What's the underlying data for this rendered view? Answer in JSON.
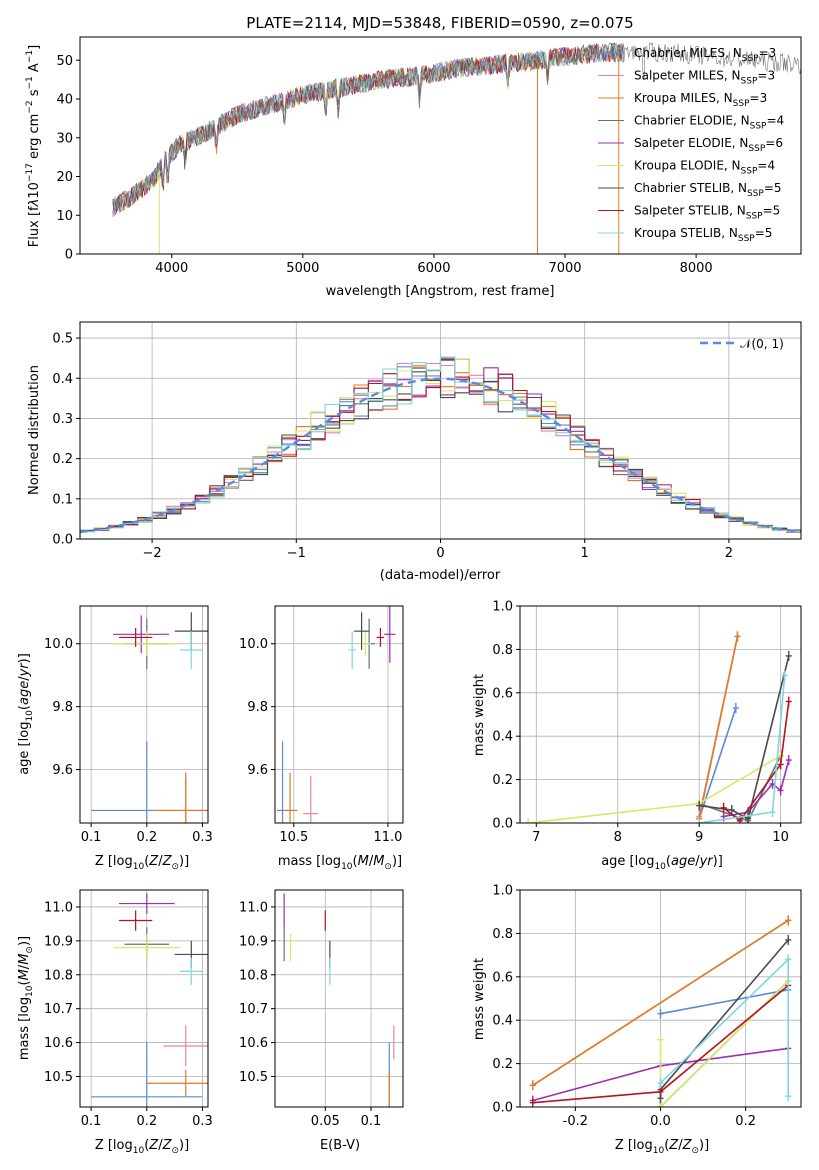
{
  "colors": {
    "Chabrier MILES": "#5b8ad9",
    "Salpeter MILES": "#ee82a8",
    "Kroupa MILES": "#e07a24",
    "Chabrier ELODIE": "#5d7a6a",
    "Salpeter ELODIE": "#9a2fb0",
    "Kroupa ELODIE": "#d7e86a",
    "Chabrier STELIB": "#4a4a4a",
    "Salpeter STELIB": "#b3141e",
    "Kroupa STELIB": "#7fd6e0"
  },
  "chart_data": [
    {
      "type": "line",
      "panel": "spectrum",
      "title": "PLATE=2114, MJD=53848, FIBERID=0590, z=0.075",
      "xlabel": "wavelength [Angstrom, rest frame]",
      "ylabel": "Flux [fλ10⁻¹⁷ erg cm⁻² s⁻¹ A⁻¹]",
      "xlim": [
        3300,
        8800
      ],
      "ylim": [
        0,
        56
      ],
      "xticks": [
        4000,
        5000,
        6000,
        7000,
        8000
      ],
      "yticks": [
        0,
        10,
        20,
        30,
        40,
        50
      ],
      "legend_position": "top-right",
      "series": [
        {
          "name": "Chabrier MILES, N_SSP=3",
          "nssp": "3"
        },
        {
          "name": "Salpeter MILES, N_SSP=3",
          "nssp": "3"
        },
        {
          "name": "Kroupa MILES, N_SSP=3",
          "nssp": "3"
        },
        {
          "name": "Chabrier ELODIE, N_SSP=4",
          "nssp": "4"
        },
        {
          "name": "Salpeter ELODIE, N_SSP=6",
          "nssp": "6"
        },
        {
          "name": "Kroupa ELODIE, N_SSP=4",
          "nssp": "4"
        },
        {
          "name": "Chabrier STELIB, N_SSP=5",
          "nssp": "5"
        },
        {
          "name": "Salpeter STELIB, N_SSP=5",
          "nssp": "5"
        },
        {
          "name": "Kroupa STELIB, N_SSP=5",
          "nssp": "5"
        }
      ],
      "continuum": {
        "x": [
          3550,
          3700,
          3850,
          3950,
          4050,
          4300,
          4500,
          4800,
          5000,
          5300,
          5600,
          5900,
          6200,
          6500,
          6800,
          7000,
          7300,
          7500,
          7800,
          8100,
          8400,
          8800
        ],
        "y": [
          12,
          15,
          19,
          24,
          28,
          32,
          36,
          39,
          41,
          43,
          45,
          46,
          48,
          49,
          50,
          51,
          52,
          52,
          52,
          51,
          50,
          49
        ]
      }
    },
    {
      "type": "histogram",
      "panel": "residuals",
      "xlabel": "(data-model)/error",
      "ylabel": "Normed distribution",
      "xlim": [
        -2.5,
        2.5
      ],
      "ylim": [
        0,
        0.54
      ],
      "xticks": [
        -2,
        -1,
        0,
        1,
        2
      ],
      "yticks": [
        0.0,
        0.1,
        0.2,
        0.3,
        0.4,
        0.5
      ],
      "grid": true,
      "reference_curve": "N(0,1)",
      "legend_position": "top-right"
    },
    {
      "type": "scatter",
      "panel": "age-vs-Z",
      "xlabel": "Z [log10(Z/Z⊙)]",
      "ylabel": "age [log10(age/yr)]",
      "xlim": [
        0.08,
        0.31
      ],
      "ylim": [
        9.43,
        10.12
      ],
      "xticks": [
        0.1,
        0.2,
        0.3
      ],
      "yticks": [
        9.6,
        9.8,
        10.0
      ],
      "points": [
        {
          "series": "Chabrier MILES",
          "x": 0.2,
          "xerr": 0.1,
          "y": 9.47,
          "yerr": 0.22
        },
        {
          "series": "Salpeter MILES",
          "x": 0.27,
          "xerr": 0.05,
          "y": 9.47,
          "yerr": 0.1
        },
        {
          "series": "Kroupa MILES",
          "x": 0.27,
          "xerr": 0.06,
          "y": 9.47,
          "yerr": 0.12
        },
        {
          "series": "Chabrier ELODIE",
          "x": 0.2,
          "xerr": 0.04,
          "y": 10.0,
          "yerr": 0.08
        },
        {
          "series": "Salpeter ELODIE",
          "x": 0.19,
          "xerr": 0.05,
          "y": 10.03,
          "yerr": 0.06
        },
        {
          "series": "Kroupa ELODIE",
          "x": 0.2,
          "xerr": 0.06,
          "y": 10.0,
          "yerr": 0.04
        },
        {
          "series": "Chabrier STELIB",
          "x": 0.28,
          "xerr": 0.03,
          "y": 10.04,
          "yerr": 0.06
        },
        {
          "series": "Salpeter STELIB",
          "x": 0.18,
          "xerr": 0.03,
          "y": 10.02,
          "yerr": 0.03
        },
        {
          "series": "Kroupa STELIB",
          "x": 0.28,
          "xerr": 0.02,
          "y": 9.98,
          "yerr": 0.06
        }
      ]
    },
    {
      "type": "scatter",
      "panel": "age-vs-mass",
      "xlabel": "mass [log10(M/M⊙)]",
      "ylabel": "",
      "xlim": [
        10.4,
        11.08
      ],
      "ylim": [
        9.43,
        10.12
      ],
      "xticks": [
        10.5,
        11.0
      ],
      "yticks": [
        9.6,
        9.8,
        10.0
      ],
      "points": [
        {
          "series": "Chabrier MILES",
          "x": 10.44,
          "xerr": 0.03,
          "y": 9.47,
          "yerr": 0.22
        },
        {
          "series": "Salpeter MILES",
          "x": 10.59,
          "xerr": 0.04,
          "y": 9.46,
          "yerr": 0.12
        },
        {
          "series": "Kroupa MILES",
          "x": 10.48,
          "xerr": 0.04,
          "y": 9.47,
          "yerr": 0.12
        },
        {
          "series": "Chabrier ELODIE",
          "x": 10.9,
          "xerr": 0.03,
          "y": 10.0,
          "yerr": 0.08
        },
        {
          "series": "Salpeter ELODIE",
          "x": 11.01,
          "xerr": 0.03,
          "y": 10.03,
          "yerr": 0.09
        },
        {
          "series": "Kroupa ELODIE",
          "x": 10.88,
          "xerr": 0.03,
          "y": 10.0,
          "yerr": 0.04
        },
        {
          "series": "Chabrier STELIB",
          "x": 10.86,
          "xerr": 0.04,
          "y": 10.04,
          "yerr": 0.06
        },
        {
          "series": "Salpeter STELIB",
          "x": 10.96,
          "xerr": 0.02,
          "y": 10.02,
          "yerr": 0.03
        },
        {
          "series": "Kroupa STELIB",
          "x": 10.81,
          "xerr": 0.02,
          "y": 9.98,
          "yerr": 0.06
        }
      ]
    },
    {
      "type": "line",
      "panel": "mass-weight-vs-age",
      "xlabel": "age [log10(age/yr)]",
      "ylabel": "mass weight",
      "xlim": [
        6.8,
        10.25
      ],
      "ylim": [
        0,
        1.0
      ],
      "xticks": [
        7,
        8,
        9,
        10
      ],
      "yticks": [
        0.0,
        0.2,
        0.4,
        0.6,
        0.8,
        1.0
      ],
      "grid": true,
      "series": [
        {
          "name": "Chabrier MILES",
          "x": [
            9.0,
            9.45
          ],
          "y": [
            0.02,
            0.53
          ]
        },
        {
          "name": "Salpeter MILES",
          "x": [
            9.0,
            9.47
          ],
          "y": [
            0.03,
            0.86
          ]
        },
        {
          "name": "Kroupa MILES",
          "x": [
            9.0,
            9.47
          ],
          "y": [
            0.02,
            0.86
          ]
        },
        {
          "name": "Chabrier ELODIE",
          "x": [
            9.0,
            9.6,
            10.0
          ],
          "y": [
            0.09,
            0.01,
            0.31
          ]
        },
        {
          "name": "Salpeter ELODIE",
          "x": [
            9.3,
            9.6,
            9.9,
            10.0,
            10.1
          ],
          "y": [
            0.03,
            0.05,
            0.18,
            0.15,
            0.29
          ]
        },
        {
          "name": "Kroupa ELODIE",
          "x": [
            6.9,
            9.0,
            10.0
          ],
          "y": [
            0.0,
            0.09,
            0.31
          ]
        },
        {
          "name": "Chabrier STELIB",
          "x": [
            9.0,
            9.4,
            9.6,
            10.1
          ],
          "y": [
            0.08,
            0.06,
            0.02,
            0.77
          ]
        },
        {
          "name": "Salpeter STELIB",
          "x": [
            9.3,
            9.5,
            10.0,
            10.1
          ],
          "y": [
            0.07,
            0.01,
            0.27,
            0.56
          ]
        },
        {
          "name": "Kroupa STELIB",
          "x": [
            9.0,
            9.9,
            10.05
          ],
          "y": [
            0.0,
            0.05,
            0.68
          ]
        }
      ]
    },
    {
      "type": "scatter",
      "panel": "mass-vs-Z",
      "xlabel": "Z [log10(Z/Z⊙)]",
      "ylabel": "mass [log10(M/M⊙)]",
      "xlim": [
        0.08,
        0.31
      ],
      "ylim": [
        10.41,
        11.05
      ],
      "xticks": [
        0.1,
        0.2,
        0.3
      ],
      "yticks": [
        10.5,
        10.6,
        10.7,
        10.8,
        10.9,
        11.0
      ],
      "points": [
        {
          "series": "Chabrier MILES",
          "x": 0.2,
          "xerr": 0.1,
          "y": 10.44,
          "yerr": 0.16
        },
        {
          "series": "Salpeter MILES",
          "x": 0.27,
          "xerr": 0.04,
          "y": 10.59,
          "yerr": 0.06
        },
        {
          "series": "Kroupa MILES",
          "x": 0.27,
          "xerr": 0.07,
          "y": 10.48,
          "yerr": 0.04
        },
        {
          "series": "Chabrier ELODIE",
          "x": 0.2,
          "xerr": 0.04,
          "y": 10.89,
          "yerr": 0.05
        },
        {
          "series": "Salpeter ELODIE",
          "x": 0.2,
          "xerr": 0.05,
          "y": 11.01,
          "yerr": 0.03
        },
        {
          "series": "Kroupa ELODIE",
          "x": 0.2,
          "xerr": 0.06,
          "y": 10.88,
          "yerr": 0.04
        },
        {
          "series": "Chabrier STELIB",
          "x": 0.28,
          "xerr": 0.03,
          "y": 10.86,
          "yerr": 0.04
        },
        {
          "series": "Salpeter STELIB",
          "x": 0.18,
          "xerr": 0.03,
          "y": 10.96,
          "yerr": 0.03
        },
        {
          "series": "Kroupa STELIB",
          "x": 0.28,
          "xerr": 0.02,
          "y": 10.81,
          "yerr": 0.04
        }
      ]
    },
    {
      "type": "scatter",
      "panel": "mass-vs-EBV",
      "xlabel": "E(B-V)",
      "ylabel": "",
      "xlim": [
        -0.005,
        0.135
      ],
      "ylim": [
        10.41,
        11.05
      ],
      "xticks": [
        0.05,
        0.1
      ],
      "yticks": [
        10.5,
        10.6,
        10.7,
        10.8,
        10.9,
        11.0
      ],
      "points": [
        {
          "series": "Chabrier MILES",
          "x": 0.12,
          "y": 10.5,
          "yerr": 0.1
        },
        {
          "series": "Salpeter MILES",
          "x": 0.125,
          "y": 10.6,
          "yerr": 0.05
        },
        {
          "series": "Kroupa MILES",
          "x": 0.12,
          "y": 10.46,
          "yerr": 0.05
        },
        {
          "series": "Chabrier ELODIE",
          "x": 0.005,
          "y": 10.89,
          "yerr": 0.05
        },
        {
          "series": "Salpeter ELODIE",
          "x": 0.005,
          "y": 10.99,
          "yerr": 0.05
        },
        {
          "series": "Kroupa ELODIE",
          "x": 0.012,
          "y": 10.88,
          "yerr": 0.04
        },
        {
          "series": "Chabrier STELIB",
          "x": 0.055,
          "y": 10.86,
          "yerr": 0.04
        },
        {
          "series": "Salpeter STELIB",
          "x": 0.05,
          "y": 10.96,
          "yerr": 0.03
        },
        {
          "series": "Kroupa STELIB",
          "x": 0.055,
          "y": 10.81,
          "yerr": 0.04
        }
      ]
    },
    {
      "type": "line",
      "panel": "mass-weight-vs-Z",
      "xlabel": "Z [log10(Z/Z⊙)]",
      "ylabel": "mass weight",
      "xlim": [
        -0.33,
        0.33
      ],
      "ylim": [
        0,
        1.0
      ],
      "xticks": [
        -0.2,
        0.0,
        0.2
      ],
      "yticks": [
        0.0,
        0.2,
        0.4,
        0.6,
        0.8,
        1.0
      ],
      "grid": true,
      "series": [
        {
          "name": "Chabrier MILES",
          "x": [
            0.0,
            0.3
          ],
          "y": [
            0.43,
            0.54
          ]
        },
        {
          "name": "Salpeter MILES",
          "x": [
            -0.3,
            0.3
          ],
          "y": [
            0.1,
            0.86
          ]
        },
        {
          "name": "Kroupa MILES",
          "x": [
            -0.3,
            0.3
          ],
          "y": [
            0.1,
            0.86
          ]
        },
        {
          "name": "Chabrier ELODIE",
          "x": [
            0.0,
            0.3
          ],
          "y": [
            0.0,
            0.58
          ]
        },
        {
          "name": "Salpeter ELODIE",
          "x": [
            -0.3,
            0.0,
            0.3
          ],
          "y": [
            0.03,
            0.19,
            0.27
          ]
        },
        {
          "name": "Kroupa ELODIE",
          "x": [
            0.0,
            0.0,
            0.3
          ],
          "y": [
            0.31,
            0.0,
            0.58
          ]
        },
        {
          "name": "Chabrier STELIB",
          "x": [
            0.0,
            0.0,
            0.3
          ],
          "y": [
            0.04,
            0.08,
            0.77
          ]
        },
        {
          "name": "Salpeter STELIB",
          "x": [
            -0.3,
            0.0,
            0.3
          ],
          "y": [
            0.02,
            0.07,
            0.56
          ]
        },
        {
          "name": "Kroupa STELIB",
          "x": [
            0.0,
            0.3,
            0.3
          ],
          "y": [
            0.11,
            0.68,
            0.05
          ]
        }
      ]
    }
  ]
}
